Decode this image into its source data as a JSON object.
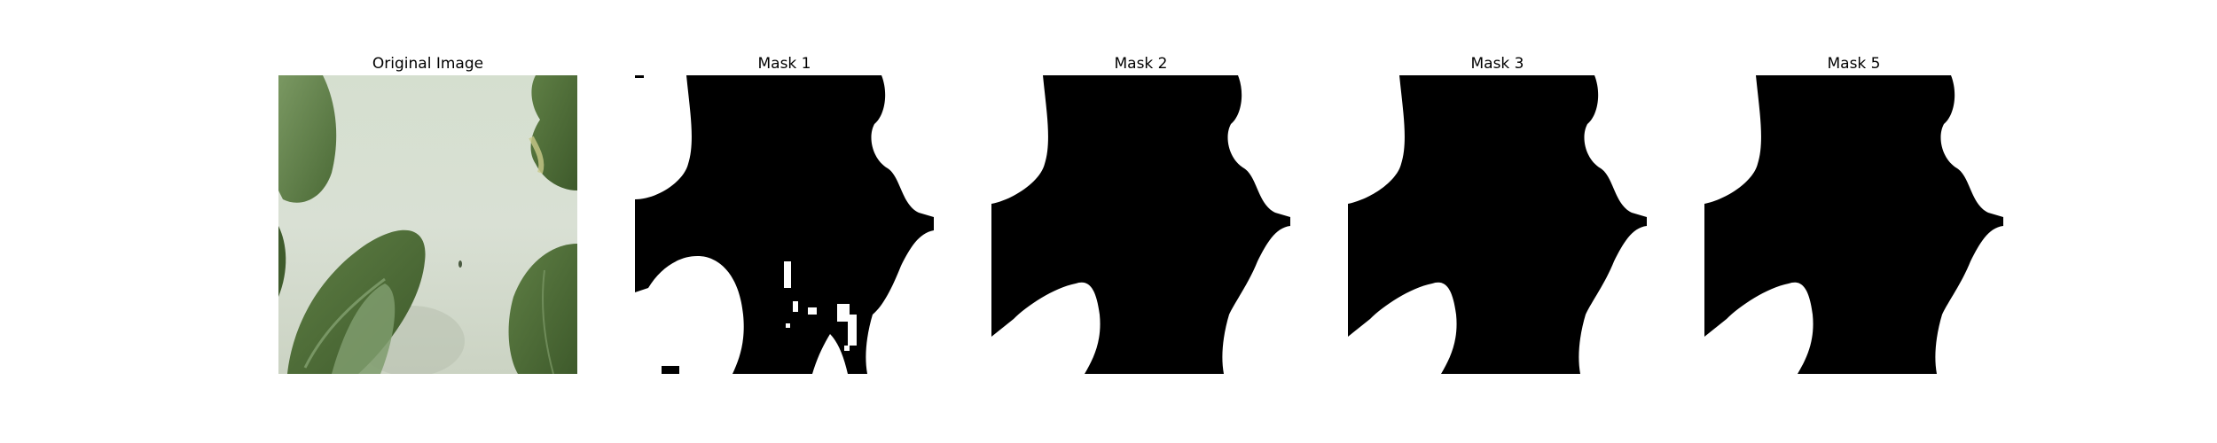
{
  "figure": {
    "panels": [
      {
        "title": "Original Image"
      },
      {
        "title": "Mask 1"
      },
      {
        "title": "Mask 2"
      },
      {
        "title": "Mask 3"
      },
      {
        "title": "Mask 5"
      }
    ]
  },
  "colors": {
    "mask_foreground": "#000000",
    "mask_background": "#ffffff",
    "photo_background": "#d3dccd",
    "leaf_dark": "#4a6b34",
    "leaf_mid": "#6b8a56",
    "leaf_light": "#8fa980"
  }
}
